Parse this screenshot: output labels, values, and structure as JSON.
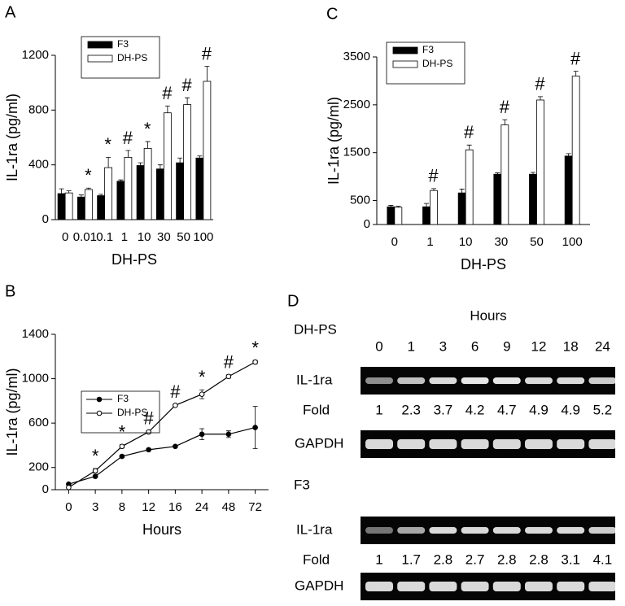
{
  "chart_data": [
    {
      "type": "bar",
      "panel": "A",
      "ylabel": "IL-1ra (pg/ml)",
      "xlabel": "DH-PS",
      "categories": [
        "0",
        "0.01",
        "0.1",
        "1",
        "10",
        "30",
        "50",
        "100"
      ],
      "series": [
        {
          "name": "F3",
          "color": "#000000",
          "values": [
            190,
            165,
            175,
            280,
            395,
            370,
            415,
            450
          ],
          "errors": [
            35,
            15,
            10,
            10,
            20,
            30,
            35,
            15
          ]
        },
        {
          "name": "DH-PS",
          "color": "#ffffff",
          "values": [
            195,
            220,
            380,
            455,
            520,
            780,
            840,
            1010
          ],
          "errors": [
            15,
            10,
            75,
            50,
            50,
            50,
            50,
            110
          ]
        }
      ],
      "annotations": [
        null,
        "*",
        "*",
        "#",
        "*",
        "#",
        "#",
        "#"
      ],
      "ylim": [
        0,
        1200
      ],
      "yticks": [
        0,
        400,
        800,
        1200
      ],
      "legend": "upper left"
    },
    {
      "type": "line",
      "panel": "B",
      "ylabel": "IL-1ra (pg/ml)",
      "xlabel": "Hours",
      "categories": [
        "0",
        "3",
        "8",
        "12",
        "16",
        "24",
        "48",
        "72"
      ],
      "series": [
        {
          "name": "F3",
          "color": "#000000",
          "values": [
            50,
            120,
            300,
            360,
            390,
            500,
            500,
            560
          ],
          "errors": [
            0,
            10,
            10,
            10,
            10,
            50,
            30,
            190
          ]
        },
        {
          "name": "DH-PS",
          "color": "#ffffff",
          "values": [
            20,
            170,
            390,
            520,
            760,
            860,
            1020,
            1150
          ],
          "errors": [
            0,
            20,
            15,
            10,
            10,
            40,
            15,
            15
          ]
        }
      ],
      "annotations": [
        null,
        "*",
        "*",
        "#",
        "#",
        "*",
        "#",
        "*"
      ],
      "ylim": [
        0,
        1400
      ],
      "yticks": [
        0,
        200,
        600,
        1000,
        1400
      ],
      "legend": "upper left"
    },
    {
      "type": "bar",
      "panel": "C",
      "ylabel": "IL-1ra (pg/ml)",
      "xlabel": "DH-PS",
      "categories": [
        "0",
        "1",
        "10",
        "30",
        "50",
        "100"
      ],
      "series": [
        {
          "name": "F3",
          "color": "#000000",
          "values": [
            370,
            370,
            660,
            1050,
            1050,
            1430
          ],
          "errors": [
            30,
            70,
            80,
            30,
            40,
            50
          ]
        },
        {
          "name": "DH-PS",
          "color": "#ffffff",
          "values": [
            360,
            710,
            1560,
            2080,
            2600,
            3100
          ],
          "errors": [
            20,
            40,
            100,
            110,
            70,
            100
          ]
        }
      ],
      "annotations": [
        null,
        "#",
        "#",
        "#",
        "#",
        "#"
      ],
      "ylim": [
        0,
        3500
      ],
      "yticks": [
        0,
        500,
        1500,
        2500,
        3500
      ],
      "legend": "upper left"
    }
  ],
  "gel": {
    "panel": "D",
    "title": "Hours",
    "hours": [
      "0",
      "1",
      "3",
      "6",
      "9",
      "12",
      "18",
      "24"
    ],
    "groups": [
      {
        "name": "DH-PS",
        "band": "IL-1ra",
        "fold_label": "Fold",
        "folds": [
          1,
          2.3,
          3.7,
          4.2,
          4.7,
          4.9,
          4.9,
          5.2
        ],
        "control": "GAPDH"
      },
      {
        "name": "F3",
        "band": "IL-1ra",
        "fold_label": "Fold",
        "folds": [
          1,
          1.7,
          2.8,
          2.7,
          2.8,
          2.8,
          3.1,
          4.1
        ],
        "control": "GAPDH"
      }
    ]
  }
}
